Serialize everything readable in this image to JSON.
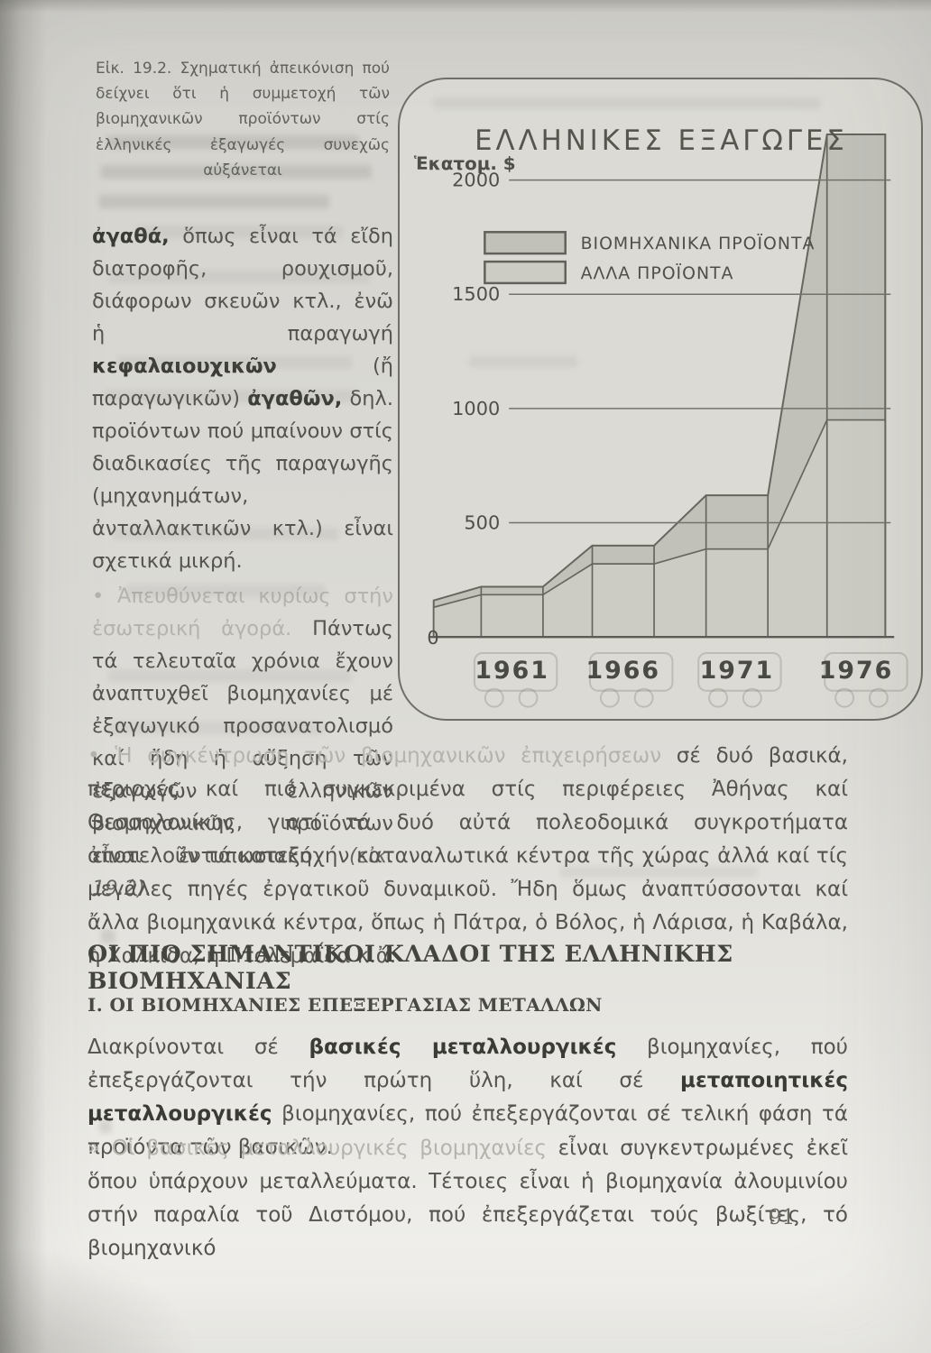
{
  "figure_caption": "Εἰκ. 19.2. Σχηματική ἀπεικόνιση πού δείχνει ὅτι ἡ συμμετοχή τῶν βιομηχανικῶν προϊόντων στίς ἑλληνικές ἐξαγωγές συνεχῶς αὐξάνεται",
  "left_column": {
    "p1": {
      "b1": "ἀγαθά,",
      "t1": " ὅπως εἶναι τά εἴδη διατροφῆς, ρουχισμοῦ, διάφορων σκευῶν κτλ., ἐνῶ ἡ παραγωγή ",
      "b2": "κεφαλαιουχικῶν",
      "t2": " (ἤ παραγωγικῶν) ",
      "b3": "ἀγαθῶν,",
      "t3": " δηλ. προϊόντων πού μπαίνουν στίς διαδικασίες τῆς παραγωγῆς (μηχανημάτων, ἀνταλλακτικῶν κτλ.) εἶναι σχετικά μικρή."
    },
    "p2": {
      "lead": "• Ἀπευθύνεται κυρίως στήν ἐσωτερική ἀγορά.",
      "t1": " Πάντως τά τελευταῖα χρόνια ἔχουν ἀναπτυχθεῖ βιομηχανίες μέ ἐξαγωγικό προσανατολισμό καί ἤδη ἡ αὔξηση τῶν ἐξαγωγῶν ἑλληνικῶν βιομηχανικῶν προϊόντων εἶναι ἐντυπωσιακή ",
      "ref": "(εἰκ. 19.2)."
    }
  },
  "chart_data": {
    "type": "area",
    "stacked": true,
    "title": "ΕΛΛΗΝΙΚΕΣ ΕΞΑΓΩΓΕΣ",
    "unit_label": "Ἑκατομ. $",
    "categories": [
      "1961",
      "1966",
      "1971",
      "1976"
    ],
    "series": [
      {
        "name": "ΒΙΟΜΗΧΑΝΙΚΑ ΠΡΟΪΟΝΤΑ",
        "values": [
          35,
          80,
          235,
          1250
        ],
        "color": "#c1c1ba"
      },
      {
        "name": "ΑΛΛΑ ΠΡΟΪΟΝΤΑ",
        "values": [
          185,
          320,
          385,
          950
        ],
        "color": "#cccbc4"
      }
    ],
    "totals": [
      220,
      400,
      620,
      2200
    ],
    "lead_in": {
      "industrial": 30,
      "other": 130
    },
    "y_ticks": [
      0,
      500,
      1000,
      1500,
      2000
    ],
    "ylim": [
      0,
      2250
    ],
    "grid": true,
    "legend_position": "top-left",
    "line_color": "#66665e",
    "text_color": "#4f4f49"
  },
  "main": {
    "p1": {
      "lead": "• Ἡ συγκέντρωση τῶν βιομηχανικῶν ἐπιχειρήσεων",
      "rest": " σέ δυό βασικά, περιοχές καί πιό συγκεκριμένα στίς περιφέρειες Ἀθήνας καί Θεσσαλονίκης, γιατί τά δυό αὐτά πολεοδομικά συγκροτήματα ἀποτελοῦν τά κατεξοχήν καταναλωτικά κέντρα τῆς χώρας ἀλλά καί τίς μεγάλες πηγές ἐργατικοῦ δυναμικοῦ. Ἤδη ὅμως ἀναπτύσσονται καί ἄλλα βιομηχανικά κέντρα, ὅπως ἡ Πάτρα, ὁ Βόλος, ἡ Λάρισα, ἡ Καβάλα, ἡ Χαλκίδα, ἡ Πτολεμαΐδα κ.ἄ."
    },
    "h1": "ΟΙ ΠΙΟ ΣΗΜΑΝΤΙΚΟΙ ΚΛΑΔΟΙ ΤΗΣ ΕΛΛΗΝΙΚΗΣ ΒΙΟΜΗΧΑΝΙΑΣ",
    "h2": "Ι. ΟΙ ΒΙΟΜΗΧΑΝΙΕΣ ΕΠΕΞΕΡΓΑΣΙΑΣ ΜΕΤΑΛΛΩΝ",
    "p2": {
      "t1": "Διακρίνονται σέ ",
      "b1": "βασικές μεταλλουργικές",
      "t2": " βιομηχανίες, πού ἐπεξεργάζονται τήν πρώτη ὕλη, καί σέ ",
      "b2": "μεταποιητικές μεταλλουργικές",
      "t3": " βιομηχανίες, πού ἐπεξεργάζονται σέ τελική φάση τά προϊόντα τῶν βασικῶν."
    },
    "p3": {
      "lead": "» Οἱ βασικές μεταλλουργικές βιομηχανίες",
      "rest": " εἶναι συγκεντρωμένες ἐκεῖ ὅπου ὑπάρχουν μεταλλεύματα. Τέτοιες εἶναι ἡ βιομηχανία ἀλουμινίου στήν παραλία τοῦ Διστόμου, πού ἐπεξεργάζεται τούς βωξίτες, τό βιομηχανικό"
    }
  },
  "page_number": "91"
}
